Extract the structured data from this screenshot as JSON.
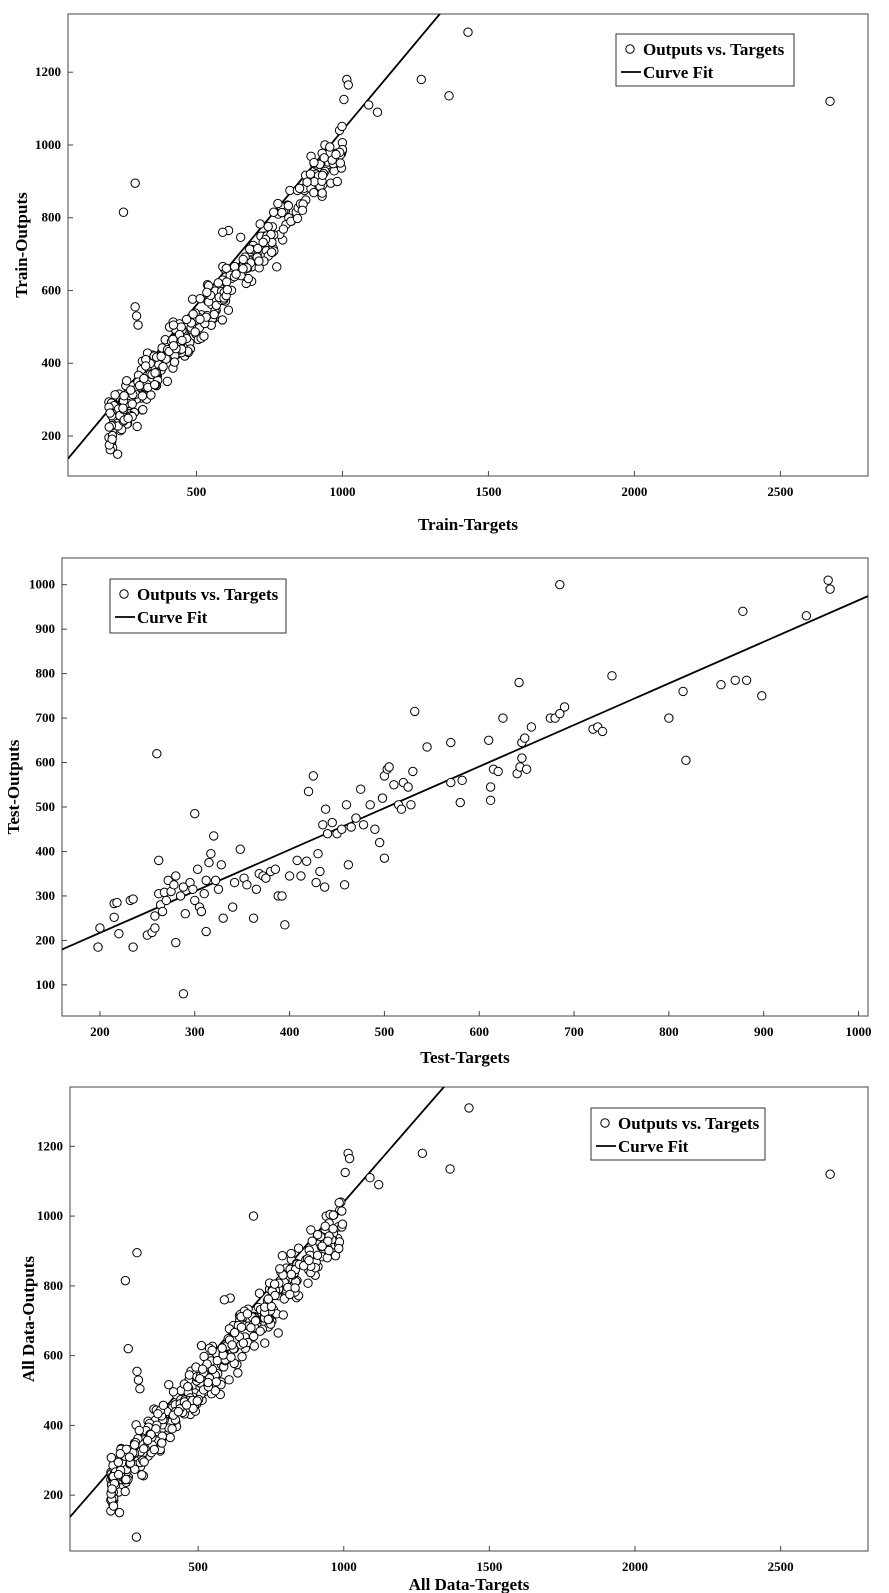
{
  "chart_data": [
    {
      "type": "scatter",
      "xlabel": "Train-Targets",
      "ylabel": "Train-Outputs",
      "xticks": [
        500,
        1000,
        1500,
        2000,
        2500
      ],
      "yticks": [
        200,
        400,
        600,
        800,
        1000,
        1200
      ],
      "xlim": [
        60,
        2800
      ],
      "ylim": [
        90,
        1360
      ],
      "legend": {
        "position": "top-right",
        "markers_label": "Outputs vs. Targets",
        "fit_label": "Curve Fit"
      },
      "fit": {
        "slope": 0.96,
        "intercept": 80
      },
      "cluster": {
        "n": 360,
        "xmin": 200,
        "xmax": 1000,
        "slope": 0.95,
        "intercept": 40,
        "noise": 60
      },
      "points": [
        [
          250,
          815
        ],
        [
          290,
          895
        ],
        [
          290,
          555
        ],
        [
          295,
          530
        ],
        [
          300,
          505
        ],
        [
          1015,
          1180
        ],
        [
          1020,
          1165
        ],
        [
          1005,
          1125
        ],
        [
          1090,
          1110
        ],
        [
          1120,
          1090
        ],
        [
          1270,
          1180
        ],
        [
          1365,
          1135
        ],
        [
          1430,
          1310
        ],
        [
          2670,
          1120
        ],
        [
          990,
          1040
        ],
        [
          940,
          1000
        ],
        [
          960,
          895
        ],
        [
          910,
          945
        ],
        [
          870,
          875
        ],
        [
          820,
          875
        ],
        [
          780,
          810
        ],
        [
          760,
          775
        ],
        [
          745,
          740
        ],
        [
          730,
          720
        ],
        [
          610,
          765
        ],
        [
          590,
          760
        ],
        [
          775,
          665
        ],
        [
          230,
          150
        ],
        [
          210,
          185
        ]
      ]
    },
    {
      "type": "scatter",
      "xlabel": "Test-Targets",
      "ylabel": "Test-Outputs",
      "xticks": [
        200,
        300,
        400,
        500,
        600,
        700,
        800,
        900,
        1000
      ],
      "yticks": [
        100,
        200,
        300,
        400,
        500,
        600,
        700,
        800,
        900,
        1000
      ],
      "xlim": [
        160,
        1010
      ],
      "ylim": [
        30,
        1060
      ],
      "legend": {
        "position": "top-left",
        "markers_label": "Outputs vs. Targets",
        "fit_label": "Curve Fit"
      },
      "fit": {
        "slope": 0.935,
        "intercept": 30
      },
      "points": [
        [
          198,
          185
        ],
        [
          200,
          228
        ],
        [
          215,
          283
        ],
        [
          215,
          252
        ],
        [
          218,
          285
        ],
        [
          220,
          215
        ],
        [
          232,
          290
        ],
        [
          235,
          293
        ],
        [
          235,
          185
        ],
        [
          250,
          212
        ],
        [
          255,
          218
        ],
        [
          258,
          228
        ],
        [
          258,
          255
        ],
        [
          260,
          620
        ],
        [
          262,
          380
        ],
        [
          262,
          305
        ],
        [
          264,
          280
        ],
        [
          266,
          265
        ],
        [
          268,
          308
        ],
        [
          270,
          290
        ],
        [
          272,
          335
        ],
        [
          275,
          310
        ],
        [
          278,
          325
        ],
        [
          280,
          345
        ],
        [
          280,
          195
        ],
        [
          285,
          300
        ],
        [
          288,
          320
        ],
        [
          290,
          260
        ],
        [
          288,
          80
        ],
        [
          295,
          330
        ],
        [
          298,
          315
        ],
        [
          300,
          485
        ],
        [
          300,
          290
        ],
        [
          303,
          360
        ],
        [
          305,
          275
        ],
        [
          307,
          265
        ],
        [
          310,
          305
        ],
        [
          312,
          335
        ],
        [
          312,
          220
        ],
        [
          315,
          375
        ],
        [
          317,
          395
        ],
        [
          320,
          435
        ],
        [
          322,
          335
        ],
        [
          325,
          315
        ],
        [
          328,
          370
        ],
        [
          330,
          250
        ],
        [
          340,
          275
        ],
        [
          342,
          330
        ],
        [
          348,
          405
        ],
        [
          352,
          340
        ],
        [
          355,
          325
        ],
        [
          362,
          250
        ],
        [
          365,
          315
        ],
        [
          368,
          350
        ],
        [
          372,
          345
        ],
        [
          375,
          340
        ],
        [
          380,
          355
        ],
        [
          385,
          360
        ],
        [
          388,
          300
        ],
        [
          392,
          300
        ],
        [
          395,
          235
        ],
        [
          400,
          345
        ],
        [
          408,
          380
        ],
        [
          412,
          345
        ],
        [
          418,
          378
        ],
        [
          420,
          535
        ],
        [
          425,
          570
        ],
        [
          428,
          330
        ],
        [
          430,
          395
        ],
        [
          432,
          355
        ],
        [
          435,
          460
        ],
        [
          437,
          320
        ],
        [
          438,
          495
        ],
        [
          440,
          440
        ],
        [
          445,
          465
        ],
        [
          450,
          440
        ],
        [
          455,
          450
        ],
        [
          458,
          325
        ],
        [
          460,
          505
        ],
        [
          462,
          370
        ],
        [
          465,
          455
        ],
        [
          470,
          475
        ],
        [
          475,
          540
        ],
        [
          478,
          460
        ],
        [
          485,
          505
        ],
        [
          490,
          450
        ],
        [
          495,
          420
        ],
        [
          498,
          520
        ],
        [
          500,
          385
        ],
        [
          500,
          570
        ],
        [
          503,
          585
        ],
        [
          505,
          590
        ],
        [
          510,
          550
        ],
        [
          515,
          505
        ],
        [
          518,
          495
        ],
        [
          520,
          555
        ],
        [
          525,
          545
        ],
        [
          528,
          505
        ],
        [
          530,
          580
        ],
        [
          532,
          715
        ],
        [
          545,
          635
        ],
        [
          570,
          555
        ],
        [
          570,
          645
        ],
        [
          580,
          510
        ],
        [
          582,
          560
        ],
        [
          610,
          650
        ],
        [
          612,
          515
        ],
        [
          612,
          545
        ],
        [
          615,
          585
        ],
        [
          620,
          580
        ],
        [
          625,
          700
        ],
        [
          640,
          575
        ],
        [
          642,
          780
        ],
        [
          643,
          590
        ],
        [
          645,
          645
        ],
        [
          645,
          610
        ],
        [
          648,
          655
        ],
        [
          650,
          585
        ],
        [
          655,
          680
        ],
        [
          675,
          700
        ],
        [
          680,
          700
        ],
        [
          685,
          1000
        ],
        [
          685,
          710
        ],
        [
          690,
          725
        ],
        [
          740,
          795
        ],
        [
          720,
          675
        ],
        [
          725,
          680
        ],
        [
          730,
          670
        ],
        [
          800,
          700
        ],
        [
          815,
          760
        ],
        [
          818,
          605
        ],
        [
          855,
          775
        ],
        [
          870,
          785
        ],
        [
          878,
          940
        ],
        [
          882,
          785
        ],
        [
          898,
          750
        ],
        [
          945,
          930
        ],
        [
          968,
          1010
        ],
        [
          970,
          990
        ]
      ]
    },
    {
      "type": "scatter",
      "xlabel": "All Data-Targets",
      "ylabel": "All Data-Outputs",
      "xticks": [
        500,
        1000,
        1500,
        2000,
        2500
      ],
      "yticks": [
        200,
        400,
        600,
        800,
        1000,
        1200
      ],
      "xlim": [
        60,
        2800
      ],
      "ylim": [
        40,
        1370
      ],
      "legend": {
        "position": "top-right",
        "markers_label": "Outputs vs. Targets",
        "fit_label": "Curve Fit"
      },
      "fit": {
        "slope": 0.96,
        "intercept": 80
      },
      "cluster": {
        "n": 420,
        "xmin": 200,
        "xmax": 1000,
        "slope": 0.95,
        "intercept": 40,
        "noise": 65
      },
      "points": [
        [
          250,
          815
        ],
        [
          290,
          895
        ],
        [
          260,
          620
        ],
        [
          290,
          555
        ],
        [
          295,
          530
        ],
        [
          300,
          505
        ],
        [
          690,
          1000
        ],
        [
          1015,
          1180
        ],
        [
          1020,
          1165
        ],
        [
          1005,
          1125
        ],
        [
          1090,
          1110
        ],
        [
          1120,
          1090
        ],
        [
          1270,
          1180
        ],
        [
          1365,
          1135
        ],
        [
          1430,
          1310
        ],
        [
          2670,
          1120
        ],
        [
          990,
          1040
        ],
        [
          940,
          1000
        ],
        [
          960,
          895
        ],
        [
          910,
          945
        ],
        [
          870,
          875
        ],
        [
          820,
          875
        ],
        [
          780,
          810
        ],
        [
          760,
          775
        ],
        [
          745,
          740
        ],
        [
          730,
          720
        ],
        [
          610,
          765
        ],
        [
          590,
          760
        ],
        [
          775,
          665
        ],
        [
          288,
          80
        ],
        [
          230,
          150
        ],
        [
          210,
          185
        ]
      ]
    }
  ]
}
